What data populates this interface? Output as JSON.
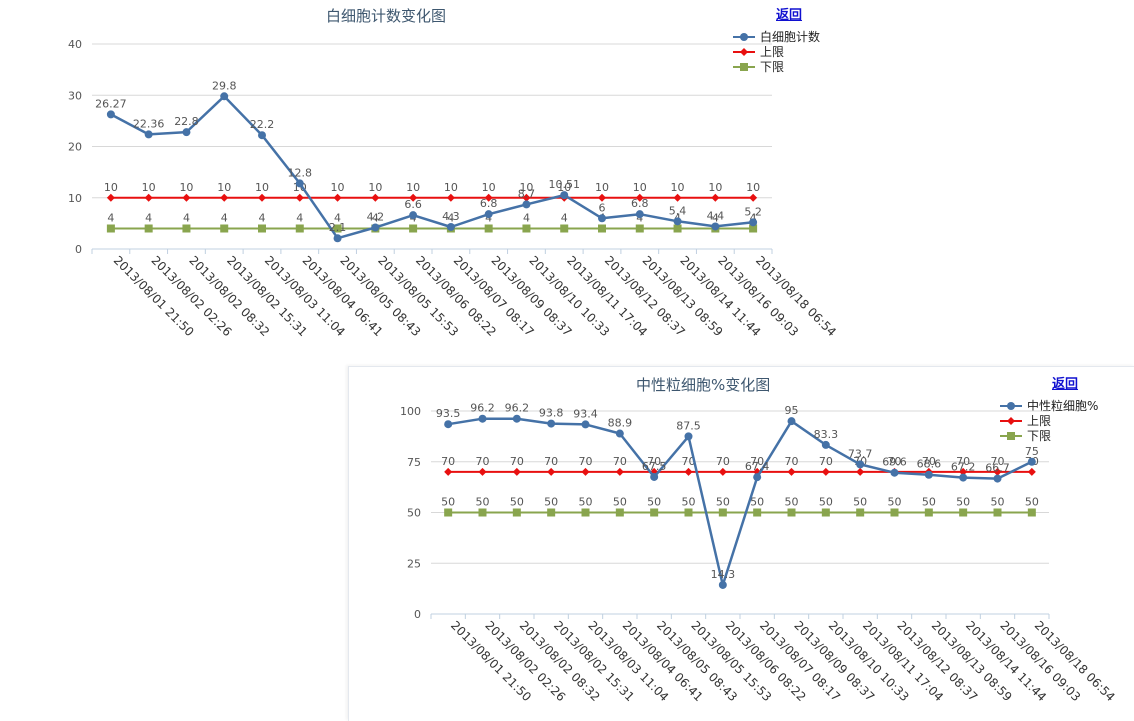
{
  "back_label": "返回",
  "chart_data": [
    {
      "type": "line",
      "title": "白细胞计数变化图",
      "xlabel": "",
      "ylabel": "",
      "ylim": [
        0,
        40
      ],
      "yticks": [
        0,
        10,
        20,
        30,
        40
      ],
      "grid": true,
      "legend": "top-right",
      "categories": [
        "2013/08/01 21:50",
        "2013/08/02 02:26",
        "2013/08/02 08:32",
        "2013/08/02 15:31",
        "2013/08/03 11:04",
        "2013/08/04 06:41",
        "2013/08/05 08:43",
        "2013/08/05 15:53",
        "2013/08/06 08:22",
        "2013/08/07 08:17",
        "2013/08/09 08:37",
        "2013/08/10 10:33",
        "2013/08/11 17:04",
        "2013/08/12 08:37",
        "2013/08/13 08:59",
        "2013/08/14 11:44",
        "2013/08/16 09:03",
        "2013/08/18 06:54"
      ],
      "series": [
        {
          "name": "白细胞计数",
          "color": "#4572a7",
          "marker": "circle",
          "values": [
            26.27,
            22.36,
            22.8,
            29.8,
            22.2,
            12.8,
            2.1,
            4.2,
            6.6,
            4.3,
            6.8,
            8.7,
            10.51,
            6,
            6.8,
            5.4,
            4.4,
            5.2
          ],
          "labels": [
            "26.27",
            "22.36",
            "22.8",
            "29.8",
            "22.2",
            "12.8",
            "2.1",
            "4.2",
            "6.6",
            "4.3",
            "6.8",
            "8.7",
            "10.51",
            "6",
            "6.8",
            "5.4",
            "4.4",
            "5.2"
          ]
        },
        {
          "name": "上限",
          "color": "#e81010",
          "marker": "diamond",
          "values": [
            10,
            10,
            10,
            10,
            10,
            10,
            10,
            10,
            10,
            10,
            10,
            10,
            10,
            10,
            10,
            10,
            10,
            10
          ],
          "labels": [
            "10",
            "10",
            "10",
            "10",
            "10",
            "10",
            "10",
            "10",
            "10",
            "10",
            "10",
            "10",
            "10",
            "10",
            "10",
            "10",
            "10",
            "10"
          ]
        },
        {
          "name": "下限",
          "color": "#89a54e",
          "marker": "square",
          "values": [
            4,
            4,
            4,
            4,
            4,
            4,
            4,
            4,
            4,
            4,
            4,
            4,
            4,
            4,
            4,
            4,
            4,
            4
          ],
          "labels": [
            "4",
            "4",
            "4",
            "4",
            "4",
            "4",
            "4",
            "4",
            "4",
            "4",
            "4",
            "4",
            "4",
            "4",
            "4",
            "4",
            "4",
            "4"
          ]
        }
      ]
    },
    {
      "type": "line",
      "title": "中性粒细胞%变化图",
      "xlabel": "",
      "ylabel": "",
      "ylim": [
        0,
        100
      ],
      "yticks": [
        0,
        25,
        50,
        75,
        100
      ],
      "grid": true,
      "legend": "top-right",
      "categories": [
        "2013/08/01 21:50",
        "2013/08/02 02:26",
        "2013/08/02 08:32",
        "2013/08/02 15:31",
        "2013/08/03 11:04",
        "2013/08/04 06:41",
        "2013/08/05 08:43",
        "2013/08/05 15:53",
        "2013/08/06 08:22",
        "2013/08/07 08:17",
        "2013/08/09 08:37",
        "2013/08/10 10:33",
        "2013/08/11 17:04",
        "2013/08/12 08:37",
        "2013/08/13 08:59",
        "2013/08/14 11:44",
        "2013/08/16 09:03",
        "2013/08/18 06:54"
      ],
      "series": [
        {
          "name": "中性粒细胞%",
          "color": "#4572a7",
          "marker": "circle",
          "values": [
            93.5,
            96.2,
            96.2,
            93.8,
            93.4,
            88.9,
            67.5,
            87.5,
            14.3,
            67.4,
            95,
            83.3,
            73.7,
            69.6,
            68.6,
            67.2,
            66.7,
            75
          ],
          "labels": [
            "93.5",
            "96.2",
            "96.2",
            "93.8",
            "93.4",
            "88.9",
            "67.5",
            "87.5",
            "14.3",
            "67.4",
            "95",
            "83.3",
            "73.7",
            "69.6",
            "68.6",
            "67.2",
            "66.7",
            "75"
          ]
        },
        {
          "name": "上限",
          "color": "#e81010",
          "marker": "diamond",
          "values": [
            70,
            70,
            70,
            70,
            70,
            70,
            70,
            70,
            70,
            70,
            70,
            70,
            70,
            70,
            70,
            70,
            70,
            70
          ],
          "labels": [
            "70",
            "70",
            "70",
            "70",
            "70",
            "70",
            "70",
            "70",
            "70",
            "70",
            "70",
            "70",
            "70",
            "70",
            "70",
            "70",
            "70",
            "70"
          ]
        },
        {
          "name": "下限",
          "color": "#89a54e",
          "marker": "square",
          "values": [
            50,
            50,
            50,
            50,
            50,
            50,
            50,
            50,
            50,
            50,
            50,
            50,
            50,
            50,
            50,
            50,
            50,
            50
          ],
          "labels": [
            "50",
            "50",
            "50",
            "50",
            "50",
            "50",
            "50",
            "50",
            "50",
            "50",
            "50",
            "50",
            "50",
            "50",
            "50",
            "50",
            "50",
            "50"
          ]
        }
      ]
    }
  ]
}
